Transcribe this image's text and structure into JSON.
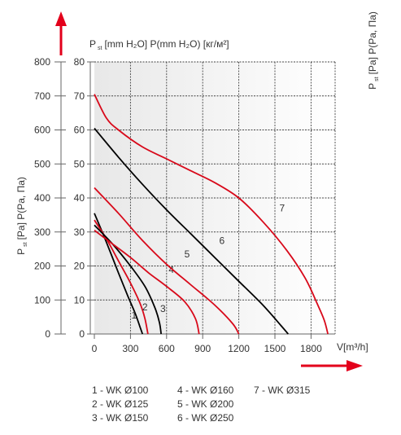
{
  "chart_data": {
    "type": "line",
    "title": "",
    "ylabel_left_main": "P",
    "ylabel_left_sub": "st",
    "ylabel_left_rest": "[Pa] P(Pa, Па)",
    "ylabel_top_main": "P",
    "ylabel_top_sub": "st",
    "ylabel_top_rest": "[mm H₂O] P(mm H₂O) [кг/м²]",
    "ylabel_right_main": "P",
    "ylabel_right_sub": "st",
    "ylabel_right_rest": "[Pa] P(Pa, Па)",
    "xlabel": "V[m³/h]",
    "xlim": [
      0,
      2000
    ],
    "ylim": [
      0,
      800
    ],
    "x_ticks": [
      "0",
      "300",
      "600",
      "900",
      "1200",
      "1500",
      "1800"
    ],
    "x_tick_values": [
      0,
      300,
      600,
      900,
      1200,
      1500,
      1800
    ],
    "y_ticks_pa": [
      "0",
      "100",
      "200",
      "300",
      "400",
      "500",
      "600",
      "700",
      "800"
    ],
    "y_ticks_mm": [
      "0",
      "10",
      "20",
      "30",
      "40",
      "50",
      "60",
      "70",
      "80"
    ],
    "y_tick_values": [
      0,
      100,
      200,
      300,
      400,
      500,
      600,
      700,
      800
    ],
    "grid": true,
    "series": [
      {
        "name": "1",
        "color": "#000000",
        "label_at": [
          330,
          45
        ],
        "x": [
          0,
          100,
          200,
          280,
          340,
          380,
          400
        ],
        "y": [
          355,
          270,
          180,
          110,
          60,
          20,
          0
        ]
      },
      {
        "name": "2",
        "color": "#d8091a",
        "label_at": [
          420,
          70
        ],
        "x": [
          0,
          100,
          200,
          300,
          380,
          420,
          445
        ],
        "y": [
          335,
          280,
          215,
          150,
          90,
          45,
          0
        ]
      },
      {
        "name": "3",
        "color": "#000000",
        "label_at": [
          570,
          65
        ],
        "x": [
          0,
          150,
          300,
          420,
          500,
          540,
          555
        ],
        "y": [
          320,
          265,
          200,
          140,
          80,
          35,
          0
        ]
      },
      {
        "name": "4",
        "color": "#d8091a",
        "label_at": [
          640,
          180
        ],
        "x": [
          0,
          150,
          300,
          450,
          600,
          750,
          840,
          870
        ],
        "y": [
          305,
          265,
          225,
          180,
          140,
          95,
          45,
          0
        ]
      },
      {
        "name": "5",
        "color": "#d8091a",
        "label_at": [
          770,
          225
        ],
        "x": [
          0,
          200,
          400,
          600,
          800,
          1000,
          1150,
          1200
        ],
        "y": [
          430,
          355,
          275,
          205,
          145,
          85,
          30,
          0
        ]
      },
      {
        "name": "6",
        "color": "#000000",
        "label_at": [
          1060,
          265
        ],
        "x": [
          0,
          200,
          400,
          600,
          800,
          1000,
          1200,
          1400,
          1550,
          1610
        ],
        "y": [
          605,
          520,
          440,
          365,
          295,
          225,
          155,
          85,
          25,
          0
        ]
      },
      {
        "name": "7",
        "color": "#d8091a",
        "label_at": [
          1560,
          360
        ],
        "x": [
          0,
          100,
          200,
          400,
          600,
          800,
          1000,
          1200,
          1400,
          1600,
          1750,
          1850,
          1910,
          1940
        ],
        "y": [
          705,
          635,
          600,
          550,
          515,
          480,
          445,
          400,
          330,
          245,
          165,
          90,
          40,
          0
        ]
      }
    ]
  },
  "legend": [
    "1 - WK Ø100",
    "2 - WK Ø125",
    "3 - WK Ø150",
    "4 - WK Ø160",
    "5 - WK Ø200",
    "6 - WK Ø250",
    "7 - WK Ø315"
  ],
  "colors": {
    "accent": "#e3001b",
    "grid": "#444444",
    "axis": "#666666"
  }
}
